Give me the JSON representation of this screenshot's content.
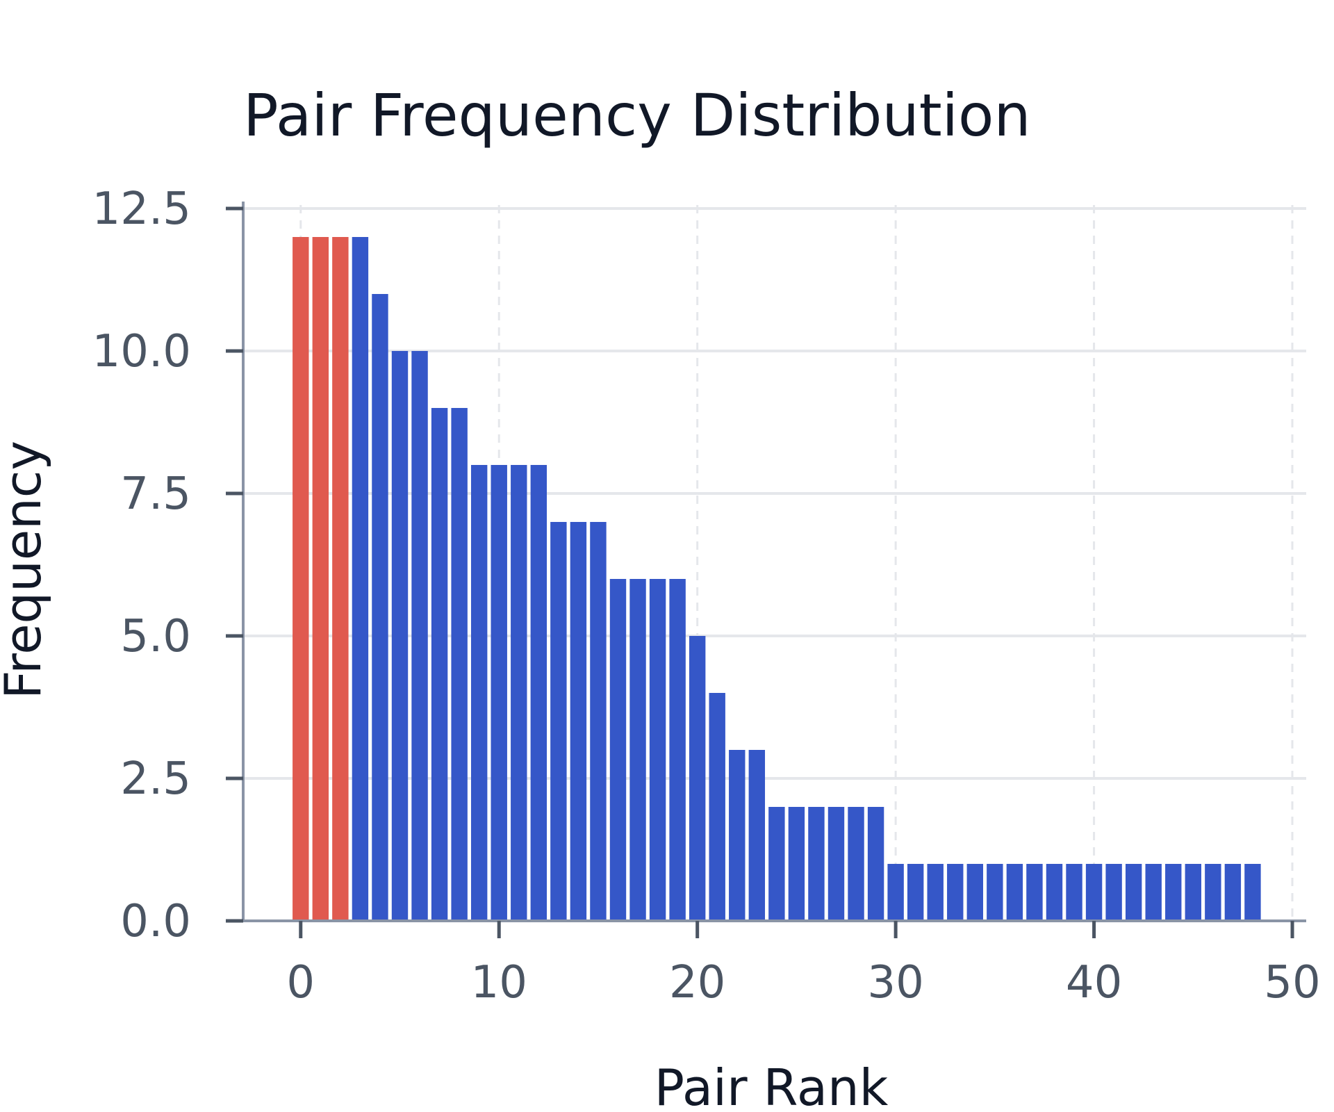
{
  "chart_data": {
    "type": "bar",
    "title": "Pair Frequency Distribution",
    "xlabel": "Pair Rank",
    "ylabel": "Frequency",
    "x": [
      0,
      1,
      2,
      3,
      4,
      5,
      6,
      7,
      8,
      9,
      10,
      11,
      12,
      13,
      14,
      15,
      16,
      17,
      18,
      19,
      20,
      21,
      22,
      23,
      24,
      25,
      26,
      27,
      28,
      29,
      30,
      31,
      32,
      33,
      34,
      35,
      36,
      37,
      38,
      39,
      40,
      41,
      42,
      43,
      44,
      45,
      46,
      47,
      48
    ],
    "values": [
      12,
      12,
      12,
      12,
      11,
      10,
      10,
      9,
      9,
      8,
      8,
      8,
      8,
      7,
      7,
      7,
      6,
      6,
      6,
      6,
      5,
      4,
      3,
      3,
      2,
      2,
      2,
      2,
      2,
      2,
      1,
      1,
      1,
      1,
      1,
      1,
      1,
      1,
      1,
      1,
      1,
      1,
      1,
      1,
      1,
      1,
      1,
      1,
      1
    ],
    "highlight_count": 3,
    "xlim": [
      -2.9,
      50.7
    ],
    "ylim": [
      0,
      12.5
    ],
    "xticks": [
      0,
      10,
      20,
      30,
      40,
      50
    ],
    "yticks": [
      0.0,
      2.5,
      5.0,
      7.5,
      10.0,
      12.5
    ],
    "xtick_labels": [
      "0",
      "10",
      "20",
      "30",
      "40",
      "50"
    ],
    "ytick_labels": [
      "0.0",
      "2.5",
      "5.0",
      "7.5",
      "10.0",
      "12.5"
    ],
    "grid": true,
    "colors": {
      "highlight": "#e05a4f",
      "bar": "#3557c8"
    }
  }
}
